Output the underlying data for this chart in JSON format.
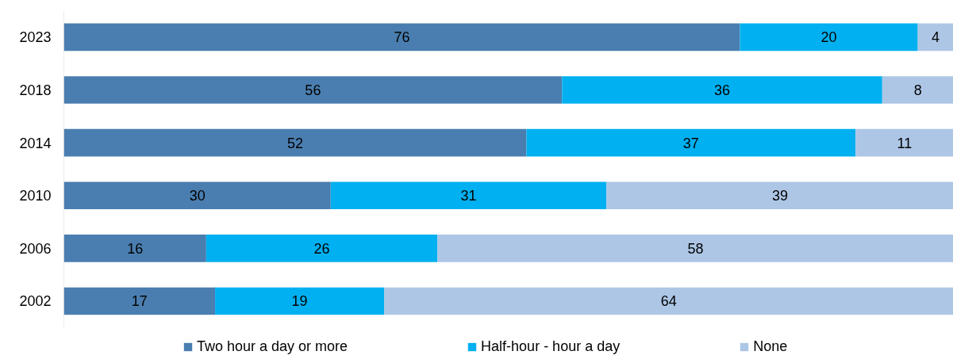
{
  "chart_data": {
    "type": "bar",
    "orientation": "horizontal",
    "stacked": true,
    "categories": [
      "2023",
      "2018",
      "2014",
      "2010",
      "2006",
      "2002"
    ],
    "series": [
      {
        "name": "Two hour a day or more",
        "color": "#4a7eb0",
        "values": [
          76,
          56,
          52,
          30,
          16,
          17
        ]
      },
      {
        "name": "Half-hour - hour a day",
        "color": "#00b0f0",
        "values": [
          20,
          36,
          37,
          31,
          26,
          19
        ]
      },
      {
        "name": "None",
        "color": "#adc6e6",
        "values": [
          4,
          8,
          11,
          39,
          58,
          64
        ]
      }
    ],
    "xlim": [
      0,
      100
    ],
    "tick_labels": "y",
    "data_labels": true,
    "legend": "bottom",
    "grid": false
  }
}
